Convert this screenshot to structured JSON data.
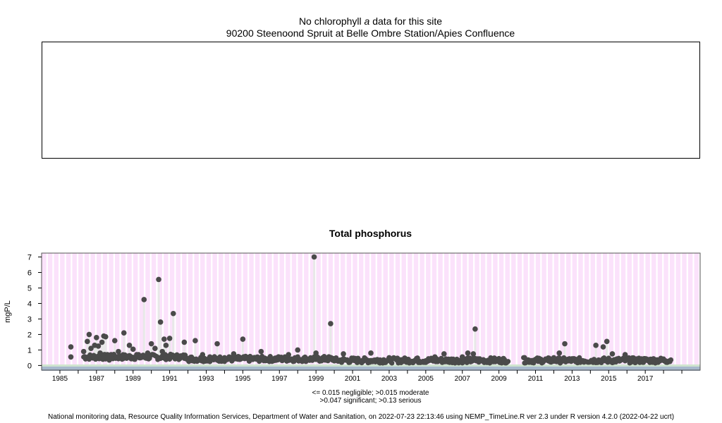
{
  "chlorophyll_panel": {
    "title_prefix": "No chlorophyll",
    "title_italic": "a",
    "title_suffix": "data for this site",
    "site": "90200 Steenoond Spruit at Belle Ombre Station/Apies Confluence"
  },
  "phosphorus_panel": {
    "title": "Total phosphorus",
    "ylabel": "mgP/L",
    "thresholds_line1": "<= 0.015 negligible; >0.015 moderate",
    "thresholds_line2": ">0.047 significant; >0.13 serious"
  },
  "footer": "National monitoring data, Resource Quality Information Services, Department of Water and Sanitation, on 2022-07-23 22:13:46 using NEMP_TimeLine.R ver 2.3 under R version 4.2.0 (2022-04-22 ucrt)",
  "colors": {
    "plot_background": "#fbe2fb",
    "grid": "#ffffff",
    "negligible_band": "#a7b8cc",
    "moderate_band": "#cfe4cf",
    "points": "#4a4a4a",
    "spikes": "#e8e8e8"
  },
  "chart_data": {
    "type": "scatter",
    "title": "Total phosphorus",
    "xlabel": "",
    "ylabel": "mgP/L",
    "xlim": [
      1984.0,
      2020.0
    ],
    "ylim": [
      -0.3,
      7.25
    ],
    "x_ticks": [
      "1985",
      "1987",
      "1989",
      "1991",
      "1993",
      "1995",
      "1997",
      "1999",
      "2001",
      "2003",
      "2005",
      "2007",
      "2009",
      "2011",
      "2013",
      "2015",
      "2017"
    ],
    "y_ticks": [
      0,
      1,
      2,
      3,
      4,
      5,
      6,
      7
    ],
    "grid": true,
    "series": [
      {
        "x": [
          1985.6,
          1985.6,
          1986.3,
          1986.5,
          1986.6,
          1986.7,
          1986.8,
          1986.9,
          1987.0,
          1987.1,
          1987.2,
          1987.3,
          1987.4,
          1987.5,
          1987.6,
          1987.7,
          1987.8,
          1988.0,
          1988.2,
          1988.5,
          1988.7,
          1988.8,
          1989.0,
          1989.2,
          1989.4,
          1989.6,
          1989.8,
          1989.9,
          1990.0,
          1990.2,
          1990.4,
          1990.5,
          1990.6,
          1990.7,
          1990.8,
          1990.9,
          1991.0,
          1991.2,
          1991.5,
          1991.8,
          1992.0,
          1992.4,
          1992.8,
          1993.2,
          1993.6,
          1994.0,
          1994.5,
          1994.8,
          1995.0,
          1995.5,
          1996.0,
          1996.5,
          1997.0,
          1997.5,
          1998.0,
          1998.5,
          1998.9,
          1999.0,
          1999.3,
          1999.5,
          1999.8,
          2000.0,
          2000.5,
          2001.0,
          2001.5,
          2002.0,
          2002.5,
          2003.0,
          2003.5,
          2004.0,
          2004.5,
          2005.0,
          2005.5,
          2006.0,
          2006.5,
          2007.0,
          2007.3,
          2007.6,
          2007.7,
          2008.0,
          2008.3,
          2008.6,
          2009.0,
          2009.3,
          2010.4,
          2010.6,
          2010.9,
          2011.3,
          2011.7,
          2012.0,
          2012.3,
          2012.6,
          2012.8,
          2013.2,
          2013.6,
          2014.0,
          2014.3,
          2014.6,
          2014.7,
          2014.9,
          2015.2,
          2015.6,
          2015.9,
          2016.3,
          2016.7,
          2017.0,
          2017.4,
          2017.8,
          2018.1
        ],
        "y": [
          1.2,
          0.55,
          0.9,
          1.55,
          2.0,
          1.1,
          0.6,
          1.3,
          1.8,
          1.25,
          0.8,
          1.5,
          1.9,
          1.85,
          0.5,
          0.35,
          0.7,
          1.6,
          0.9,
          2.1,
          0.6,
          1.3,
          1.05,
          0.7,
          0.5,
          4.25,
          0.8,
          0.6,
          1.4,
          1.1,
          5.55,
          2.8,
          0.9,
          1.7,
          1.3,
          0.6,
          1.75,
          3.35,
          0.6,
          1.5,
          0.45,
          1.6,
          0.7,
          0.55,
          1.4,
          0.5,
          0.75,
          0.4,
          1.7,
          0.4,
          0.9,
          0.3,
          0.45,
          0.7,
          1.0,
          0.4,
          7.0,
          0.8,
          0.35,
          0.4,
          2.7,
          0.3,
          0.75,
          0.35,
          0.3,
          0.8,
          0.35,
          0.5,
          0.3,
          0.25,
          0.45,
          0.3,
          0.55,
          0.75,
          0.4,
          0.55,
          0.8,
          0.75,
          2.35,
          0.3,
          0.25,
          0.3,
          0.25,
          0.3,
          0.5,
          0.35,
          0.3,
          0.25,
          0.3,
          0.5,
          0.8,
          1.4,
          0.3,
          0.25,
          0.3,
          0.25,
          1.3,
          0.3,
          1.2,
          1.55,
          0.75,
          0.3,
          0.7,
          0.25,
          0.3,
          0.4,
          0.25,
          0.3,
          0.3
        ]
      }
    ]
  }
}
